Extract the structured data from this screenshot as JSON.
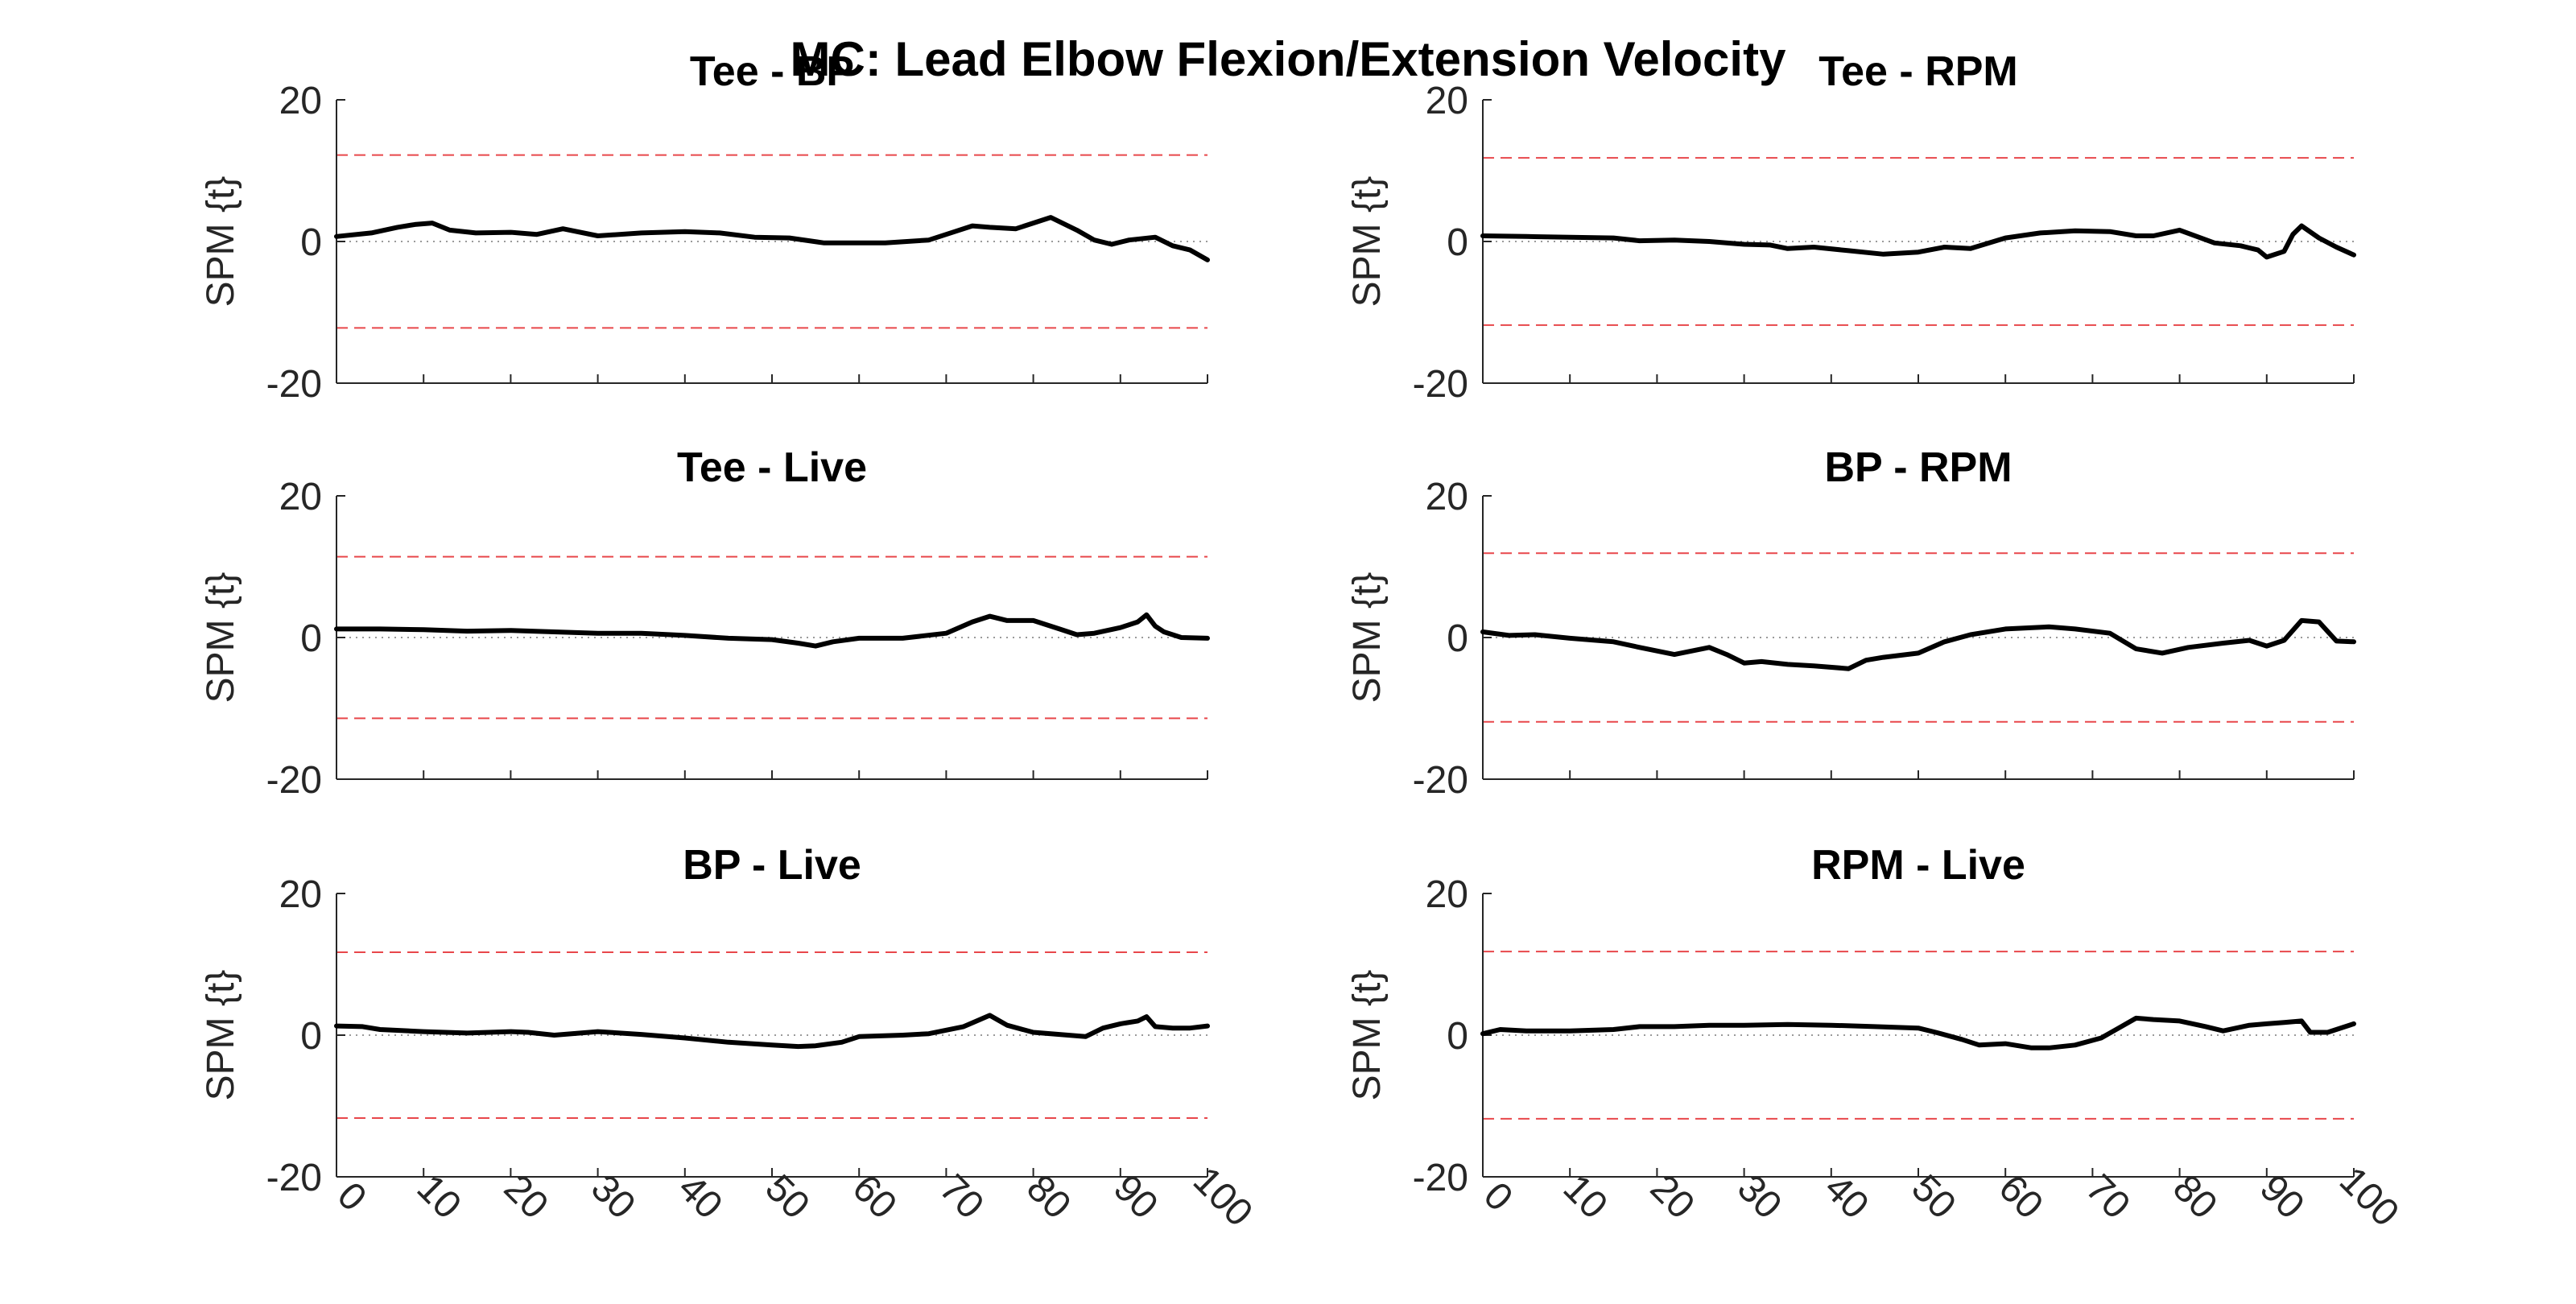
{
  "figure": {
    "title": "MC: Lead Elbow Flexion/Extension Velocity"
  },
  "colors": {
    "curve": "#000000",
    "threshold": "#e8474b",
    "zero_line": "#9a9a9a",
    "axis": "#262626"
  },
  "chart_data": [
    {
      "type": "line",
      "title": "Tee - BP",
      "ylabel": "SPM {t}",
      "xlim": [
        0,
        100
      ],
      "ylim": [
        -20,
        20
      ],
      "yticks": [
        -20,
        0,
        20
      ],
      "xticks": [
        0,
        10,
        20,
        30,
        40,
        50,
        60,
        70,
        80,
        90,
        100
      ],
      "show_xtick_labels": false,
      "threshold": 12.2,
      "x": [
        0,
        4,
        7,
        9,
        11,
        13,
        16,
        20,
        23,
        26,
        30,
        35,
        40,
        44,
        48,
        52,
        56,
        60,
        63,
        68,
        71,
        73,
        75,
        78,
        82,
        85,
        87,
        89,
        91,
        94,
        96,
        98,
        100
      ],
      "values": [
        0.7,
        1.2,
        2.0,
        2.4,
        2.6,
        1.6,
        1.2,
        1.3,
        1.0,
        1.8,
        0.8,
        1.2,
        1.4,
        1.2,
        0.6,
        0.5,
        -0.2,
        -0.2,
        -0.2,
        0.2,
        1.4,
        2.2,
        2.0,
        1.8,
        3.4,
        1.6,
        0.2,
        -0.4,
        0.2,
        0.6,
        -0.6,
        -1.2,
        -2.6
      ]
    },
    {
      "type": "line",
      "title": "Tee - RPM",
      "ylabel": "SPM {t}",
      "xlim": [
        0,
        100
      ],
      "ylim": [
        -20,
        20
      ],
      "yticks": [
        -20,
        0,
        20
      ],
      "xticks": [
        0,
        10,
        20,
        30,
        40,
        50,
        60,
        70,
        80,
        90,
        100
      ],
      "show_xtick_labels": false,
      "threshold": 11.8,
      "x": [
        0,
        5,
        10,
        15,
        18,
        22,
        26,
        30,
        33,
        35,
        38,
        42,
        46,
        50,
        53,
        56,
        60,
        64,
        68,
        72,
        75,
        77,
        80,
        84,
        87,
        89,
        90,
        92,
        93,
        94,
        96,
        98,
        100
      ],
      "values": [
        0.8,
        0.7,
        0.6,
        0.5,
        0.1,
        0.2,
        0.0,
        -0.4,
        -0.5,
        -1.0,
        -0.8,
        -1.3,
        -1.8,
        -1.5,
        -0.8,
        -1.0,
        0.5,
        1.2,
        1.5,
        1.4,
        0.8,
        0.8,
        1.6,
        -0.2,
        -0.6,
        -1.2,
        -2.2,
        -1.4,
        1.0,
        2.2,
        0.5,
        -0.8,
        -1.9
      ]
    },
    {
      "type": "line",
      "title": "Tee - Live",
      "ylabel": "SPM {t}",
      "xlim": [
        0,
        100
      ],
      "ylim": [
        -20,
        20
      ],
      "yticks": [
        -20,
        0,
        20
      ],
      "xticks": [
        0,
        10,
        20,
        30,
        40,
        50,
        60,
        70,
        80,
        90,
        100
      ],
      "show_xtick_labels": false,
      "threshold": 11.4,
      "x": [
        0,
        5,
        10,
        15,
        20,
        25,
        30,
        35,
        40,
        45,
        50,
        53,
        55,
        57,
        60,
        65,
        70,
        73,
        75,
        77,
        80,
        83,
        85,
        87,
        90,
        92,
        93,
        94,
        95,
        97,
        100
      ],
      "values": [
        1.2,
        1.2,
        1.1,
        0.9,
        1.0,
        0.8,
        0.6,
        0.6,
        0.3,
        -0.1,
        -0.3,
        -0.8,
        -1.2,
        -0.6,
        -0.1,
        -0.1,
        0.6,
        2.2,
        3.0,
        2.4,
        2.4,
        1.2,
        0.4,
        0.6,
        1.4,
        2.2,
        3.2,
        1.6,
        0.8,
        0.0,
        -0.1
      ]
    },
    {
      "type": "line",
      "title": "BP - RPM",
      "ylabel": "SPM {t}",
      "xlim": [
        0,
        100
      ],
      "ylim": [
        -20,
        20
      ],
      "yticks": [
        -20,
        0,
        20
      ],
      "xticks": [
        0,
        10,
        20,
        30,
        40,
        50,
        60,
        70,
        80,
        90,
        100
      ],
      "show_xtick_labels": false,
      "threshold": 11.9,
      "x": [
        0,
        3,
        6,
        10,
        15,
        18,
        22,
        26,
        28,
        30,
        32,
        35,
        38,
        42,
        44,
        46,
        50,
        53,
        56,
        60,
        65,
        68,
        72,
        75,
        78,
        81,
        85,
        88,
        90,
        92,
        94,
        96,
        98,
        100
      ],
      "values": [
        0.8,
        0.3,
        0.4,
        -0.1,
        -0.6,
        -1.4,
        -2.4,
        -1.4,
        -2.4,
        -3.6,
        -3.4,
        -3.8,
        -4.0,
        -4.4,
        -3.2,
        -2.8,
        -2.2,
        -0.6,
        0.4,
        1.2,
        1.5,
        1.2,
        0.6,
        -1.6,
        -2.2,
        -1.4,
        -0.8,
        -0.4,
        -1.2,
        -0.4,
        2.4,
        2.2,
        -0.5,
        -0.6
      ]
    },
    {
      "type": "line",
      "title": "BP - Live",
      "ylabel": "SPM {t}",
      "xlim": [
        0,
        100
      ],
      "ylim": [
        -20,
        20
      ],
      "yticks": [
        -20,
        0,
        20
      ],
      "xticks": [
        0,
        10,
        20,
        30,
        40,
        50,
        60,
        70,
        80,
        90,
        100
      ],
      "xtick_labels": [
        "0",
        "10",
        "20",
        "30",
        "40",
        "50",
        "60",
        "70",
        "80",
        "90",
        "100"
      ],
      "show_xtick_labels": true,
      "threshold": 11.7,
      "x": [
        0,
        3,
        5,
        10,
        15,
        20,
        22,
        25,
        28,
        30,
        35,
        40,
        45,
        50,
        53,
        55,
        58,
        60,
        65,
        68,
        72,
        75,
        77,
        80,
        84,
        86,
        88,
        90,
        92,
        93,
        94,
        96,
        98,
        100
      ],
      "values": [
        1.3,
        1.2,
        0.8,
        0.5,
        0.3,
        0.5,
        0.4,
        0.0,
        0.3,
        0.5,
        0.1,
        -0.4,
        -1.0,
        -1.4,
        -1.6,
        -1.5,
        -1.0,
        -0.2,
        0.0,
        0.2,
        1.2,
        2.8,
        1.4,
        0.4,
        0.0,
        -0.2,
        1.0,
        1.6,
        2.0,
        2.6,
        1.2,
        1.0,
        1.0,
        1.3
      ]
    },
    {
      "type": "line",
      "title": "RPM - Live",
      "ylabel": "SPM {t}",
      "xlim": [
        0,
        100
      ],
      "ylim": [
        -20,
        20
      ],
      "yticks": [
        -20,
        0,
        20
      ],
      "xticks": [
        0,
        10,
        20,
        30,
        40,
        50,
        60,
        70,
        80,
        90,
        100
      ],
      "xtick_labels": [
        "0",
        "10",
        "20",
        "30",
        "40",
        "50",
        "60",
        "70",
        "80",
        "90",
        "100"
      ],
      "show_xtick_labels": true,
      "threshold": 11.8,
      "x": [
        0,
        2,
        5,
        10,
        15,
        18,
        22,
        26,
        30,
        35,
        40,
        45,
        50,
        52,
        55,
        57,
        60,
        63,
        65,
        68,
        71,
        73,
        75,
        77,
        80,
        83,
        85,
        88,
        90,
        92,
        94,
        95,
        97,
        100
      ],
      "values": [
        0.2,
        0.8,
        0.6,
        0.6,
        0.8,
        1.2,
        1.2,
        1.4,
        1.4,
        1.5,
        1.4,
        1.2,
        1.0,
        0.4,
        -0.6,
        -1.4,
        -1.2,
        -1.8,
        -1.8,
        -1.4,
        -0.4,
        1.0,
        2.4,
        2.2,
        2.0,
        1.2,
        0.6,
        1.4,
        1.6,
        1.8,
        2.0,
        0.4,
        0.4,
        1.6
      ]
    }
  ]
}
